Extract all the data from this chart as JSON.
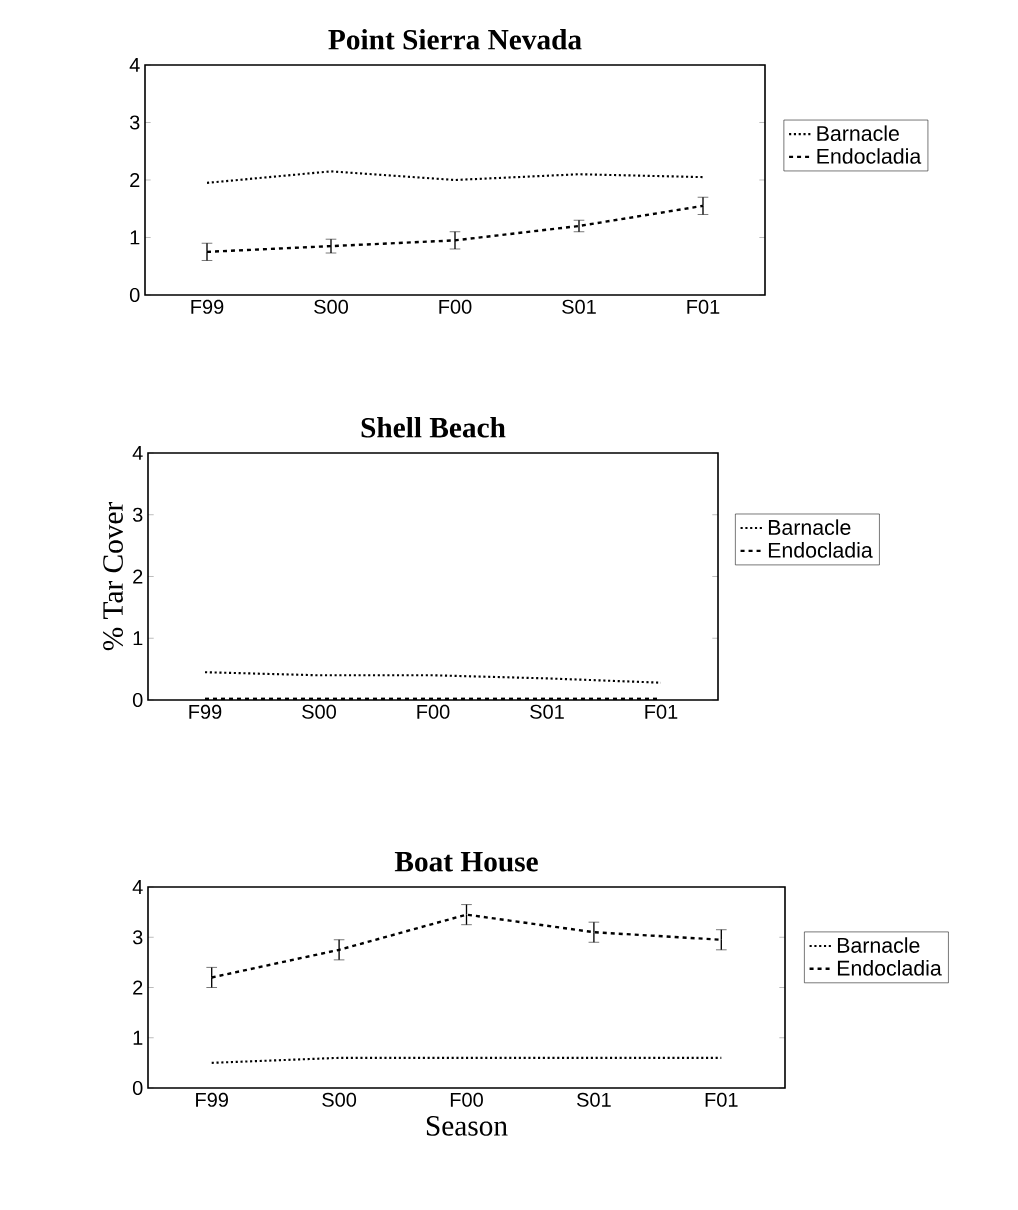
{
  "chart_data": [
    {
      "type": "line",
      "title": "Point Sierra Nevada",
      "categories": [
        "F99",
        "S00",
        "F00",
        "S01",
        "F01"
      ],
      "ylim": [
        0,
        4
      ],
      "yticks": [
        0,
        1,
        2,
        3,
        4
      ],
      "legend": "right",
      "series": [
        {
          "name": "Barnacle",
          "color": "#000000",
          "line_style": "dotted",
          "values": [
            1.95,
            2.15,
            2.0,
            2.1,
            2.05
          ]
        },
        {
          "name": "Endocladia",
          "color": "#000000",
          "line_style": "dashed",
          "values": [
            0.75,
            0.85,
            0.95,
            1.2,
            1.55
          ],
          "errors": [
            0.15,
            0.12,
            0.15,
            0.1,
            0.15
          ]
        }
      ]
    },
    {
      "type": "line",
      "title": "Shell Beach",
      "ylabel": "% Tar Cover",
      "categories": [
        "F99",
        "S00",
        "F00",
        "S01",
        "F01"
      ],
      "ylim": [
        0,
        4
      ],
      "yticks": [
        0,
        1,
        2,
        3,
        4
      ],
      "legend": "right",
      "series": [
        {
          "name": "Barnacle",
          "color": "#000000",
          "line_style": "dotted",
          "values": [
            0.45,
            0.4,
            0.4,
            0.35,
            0.28
          ]
        },
        {
          "name": "Endocladia",
          "color": "#000000",
          "line_style": "dashed",
          "values": [
            0.02,
            0.02,
            0.02,
            0.02,
            0.02
          ]
        }
      ]
    },
    {
      "type": "line",
      "title": "Boat House",
      "xlabel": "Season",
      "categories": [
        "F99",
        "S00",
        "F00",
        "S01",
        "F01"
      ],
      "ylim": [
        0,
        4
      ],
      "yticks": [
        0,
        1,
        2,
        3,
        4
      ],
      "legend": "right",
      "series": [
        {
          "name": "Barnacle",
          "color": "#000000",
          "line_style": "dotted",
          "values": [
            0.5,
            0.6,
            0.6,
            0.6,
            0.6
          ]
        },
        {
          "name": "Endocladia",
          "color": "#000000",
          "line_style": "dashed",
          "values": [
            2.2,
            2.75,
            3.45,
            3.1,
            2.95
          ],
          "errors": [
            0.2,
            0.2,
            0.2,
            0.2,
            0.2
          ]
        }
      ]
    }
  ]
}
